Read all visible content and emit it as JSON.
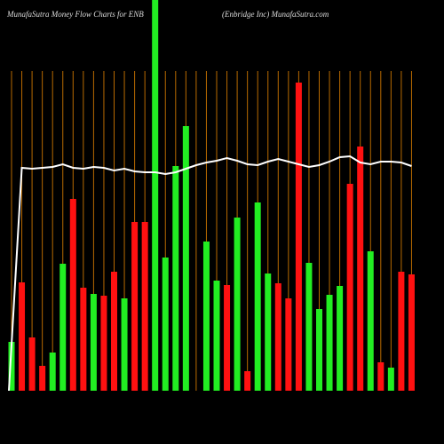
{
  "chart_data": {
    "type": "bar",
    "title": "MunafaSutra  Money Flow  Charts for ENB",
    "subtitle": "(Enbridge  Inc) MunafaSutra.com",
    "values": [
      55,
      122,
      60,
      28,
      43,
      143,
      216,
      116,
      109,
      107,
      134,
      104,
      190,
      190,
      440,
      150,
      253,
      298,
      0,
      168,
      124,
      119,
      195,
      22,
      212,
      132,
      121,
      104,
      347,
      144,
      92,
      108,
      118,
      233,
      275,
      157,
      32,
      26,
      134,
      131
    ],
    "colors": [
      "#22ee22",
      "#ff1111",
      "#ff1111",
      "#ff1111",
      "#22ee22",
      "#22ee22",
      "#ff1111",
      "#ff1111",
      "#22ee22",
      "#ff1111",
      "#ff1111",
      "#22ee22",
      "#ff1111",
      "#ff1111",
      "#22ee22",
      "#22ee22",
      "#22ee22",
      "#22ee22",
      "#22ee22",
      "#22ee22",
      "#22ee22",
      "#ff1111",
      "#22ee22",
      "#ff1111",
      "#22ee22",
      "#22ee22",
      "#ff1111",
      "#ff1111",
      "#ff1111",
      "#22ee22",
      "#22ee22",
      "#22ee22",
      "#22ee22",
      "#ff1111",
      "#ff1111",
      "#22ee22",
      "#ff1111",
      "#22ee22",
      "#ff1111",
      "#ff1111"
    ],
    "line": {
      "color": "#ffffff",
      "values": [
        0,
        251,
        250,
        251,
        252,
        255,
        251,
        250,
        252,
        251,
        248,
        250,
        247,
        246,
        246,
        244,
        246,
        250,
        254,
        257,
        259,
        262,
        259,
        255,
        254,
        258,
        261,
        258,
        255,
        252,
        254,
        258,
        263,
        264,
        257,
        255,
        258,
        258,
        257,
        253
      ]
    },
    "ylim": [
      0,
      440
    ]
  }
}
